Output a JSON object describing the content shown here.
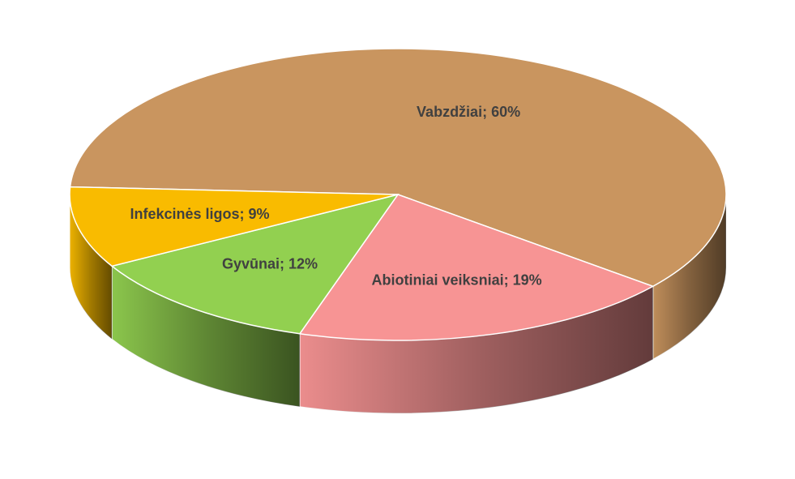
{
  "chart_data": {
    "type": "pie",
    "values": [
      60,
      19,
      12,
      9
    ],
    "value_labels": [
      "Vabzdžiai; 60%",
      "Abiotiniai veiksniai; 19%",
      "Gyvūnai; 12%",
      "Infekcinės ligos; 9%"
    ],
    "colors": [
      "#c9955f",
      "#f79494",
      "#92d050",
      "#f9bb00"
    ]
  }
}
